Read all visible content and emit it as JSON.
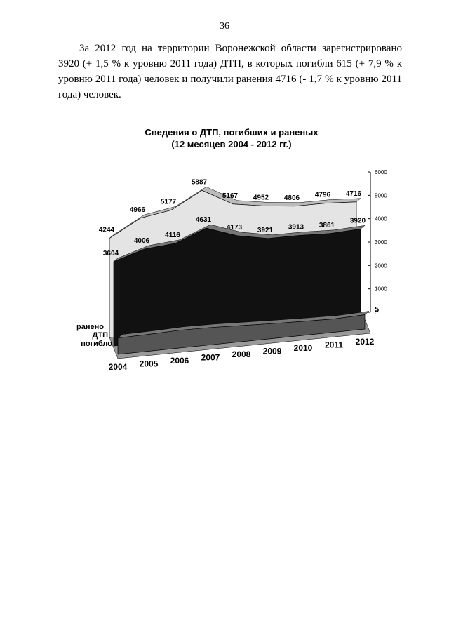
{
  "page_number": "36",
  "paragraph": "За 2012 год на территории Воронежской области зарегистрировано 3920 (+ 1,5 % к уровню 2011 года) ДТП, в которых погибли 615 (+ 7,9 % к уровню 2011 года) человек и получили ранения 4716 (- 1,7 % к уровню 2011 года) человек.",
  "chart_data": {
    "type": "area3d",
    "title": "Сведения о ДТП, погибших и раненых",
    "subtitle": "(12 месяцев 2004 - 2012 гг.)",
    "categories": [
      "2004",
      "2005",
      "2006",
      "2007",
      "2008",
      "2009",
      "2010",
      "2011",
      "2012"
    ],
    "series": [
      {
        "name": "погибло",
        "color": "#555555",
        "values": [
          700,
          720,
          760,
          740,
          690,
          640,
          600,
          570,
          615
        ],
        "labels_shown": false
      },
      {
        "name": "ДТП",
        "color": "#111111",
        "values": [
          3604,
          4006,
          4116,
          4631,
          4173,
          3921,
          3913,
          3861,
          3920
        ],
        "labels_shown": true
      },
      {
        "name": "ранено",
        "color": "#e4e4e4",
        "values": [
          4244,
          4966,
          5177,
          5887,
          5167,
          4952,
          4806,
          4796,
          4716
        ],
        "labels_shown": true
      }
    ],
    "annotations": [
      "5"
    ],
    "ylim": [
      0,
      6000
    ],
    "yticks": [
      0,
      1000,
      2000,
      3000,
      4000,
      5000,
      6000
    ]
  }
}
